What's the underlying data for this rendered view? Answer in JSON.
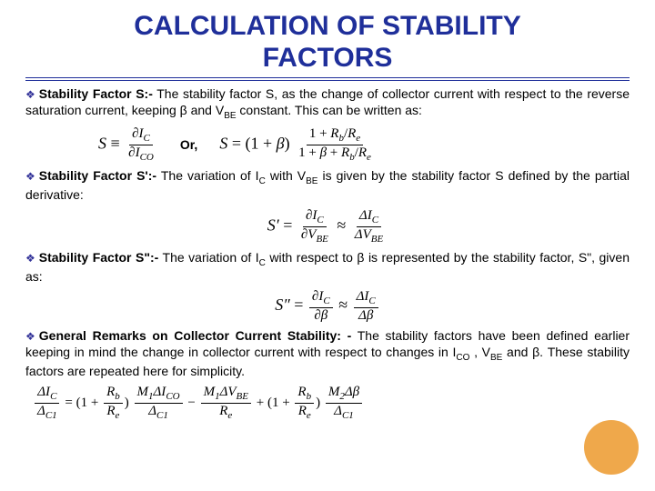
{
  "colors": {
    "title": "#1f2f9a",
    "rule": "#1f2f9a",
    "bullet": "#333399",
    "body": "#000000",
    "circle": "#efa84b"
  },
  "fontsize": {
    "title": 30,
    "body": 14,
    "eq": 18
  },
  "title": {
    "line1": "CALCULATION OF STABILITY",
    "line2": "FACTORS"
  },
  "bullet_glyph": "❖",
  "or_label": "Or,",
  "sections": {
    "s": {
      "head": "Stability Factor S:-",
      "body1": " The stability factor S, as the change of collector current with respect to the reverse saturation current, keeping β and V",
      "sub1": "BE",
      "body2": " constant. This can be written as:"
    },
    "sp": {
      "head": "Stability Factor S':-",
      "body1": " The variation of I",
      "sub1": "C",
      "body2": " with V",
      "sub2": "BE",
      "body3": " is given by the stability factor S defined by the partial derivative:"
    },
    "spp": {
      "head": "Stability Factor S\":-",
      "body1": " The variation of I",
      "sub1": "C",
      "body2": " with respect to β is represented by the stability factor, S\", given as:"
    },
    "gen": {
      "head": "General Remarks on Collector Current Stability: -",
      "body1": " The stability factors have been defined earlier keeping in mind the change in collector current with respect to changes in I",
      "sub1": "CO",
      "body2": " , V",
      "sub2": "BE",
      "body3": " and β. These stability factors are repeated here for simplicity."
    }
  },
  "equations": {
    "s_def": {
      "lhs": "S ≡",
      "num": "∂I_C",
      "den": "∂I_CO"
    },
    "s_alt": {
      "lhs": "S = (1 + β)",
      "num": "1 + R_b/R_e",
      "den": "1 + β + R_b/R_e"
    },
    "sp_def": {
      "lhs": "S′ =",
      "num1": "∂I_C",
      "den1": "∂V_BE",
      "approx": "≈",
      "num2": "ΔI_C",
      "den2": "ΔV_BE"
    },
    "spp_def": {
      "lhs": "S″ =",
      "num1": "∂I_C",
      "den1": "∂β",
      "approx": "≈",
      "num2": "ΔI_C",
      "den2": "Δβ"
    },
    "gen1": {
      "lhs": "ΔI_C / Δ_C1 = (1 + R_b/R_e) · M_1 ΔI_CO − (M_1 ΔV_BE)/R_e + (1 + R_b/R_e) · M_2 Δβ / Δ_C1"
    }
  }
}
